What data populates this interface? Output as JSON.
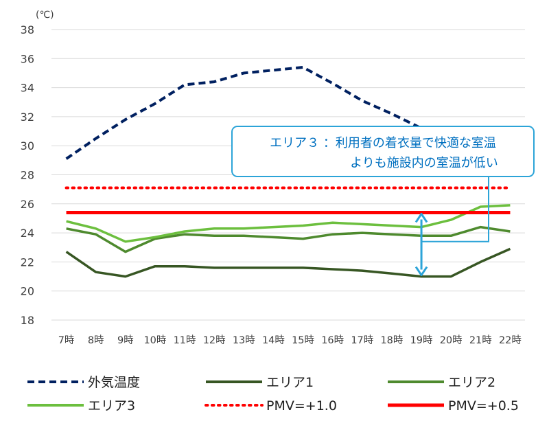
{
  "chart_data": {
    "type": "line",
    "title": "",
    "unit_label": "(℃)",
    "xlabel": "",
    "ylabel": "",
    "categories": [
      "7時",
      "8時",
      "9時",
      "10時",
      "11時",
      "12時",
      "13時",
      "14時",
      "15時",
      "16時",
      "17時",
      "18時",
      "19時",
      "20時",
      "21時",
      "22時"
    ],
    "ylim": [
      18,
      38
    ],
    "yticks": [
      18,
      20,
      22,
      24,
      26,
      28,
      30,
      32,
      34,
      36,
      38
    ],
    "grid": true,
    "legend_position": "bottom",
    "series": [
      {
        "name": "外気温度",
        "color": "#002060",
        "style": "dashed",
        "values": [
          29.1,
          30.5,
          31.8,
          32.9,
          34.2,
          34.4,
          35.0,
          35.2,
          35.4,
          34.3,
          33.1,
          32.2,
          31.2,
          30.4,
          null,
          null
        ]
      },
      {
        "name": "エリア1",
        "color": "#375623",
        "style": "solid",
        "values": [
          22.7,
          21.3,
          21.0,
          21.7,
          21.7,
          21.6,
          21.6,
          21.6,
          21.6,
          21.5,
          21.4,
          21.2,
          21.0,
          21.0,
          22.0,
          22.9
        ]
      },
      {
        "name": "エリア2",
        "color": "#4E8A2E",
        "style": "solid",
        "values": [
          24.3,
          23.9,
          22.7,
          23.6,
          23.9,
          23.8,
          23.8,
          23.7,
          23.6,
          23.9,
          24.0,
          23.9,
          23.8,
          23.8,
          24.4,
          24.1
        ]
      },
      {
        "name": "エリア3",
        "color": "#6CBF3E",
        "style": "solid",
        "values": [
          24.8,
          24.3,
          23.4,
          23.7,
          24.1,
          24.3,
          24.3,
          24.4,
          24.5,
          24.7,
          24.6,
          24.5,
          24.4,
          24.9,
          25.8,
          25.9
        ]
      },
      {
        "name": "PMV=+1.0",
        "color": "#FF0000",
        "style": "dotted",
        "values": [
          27.1,
          27.1,
          27.1,
          27.1,
          27.1,
          27.1,
          27.1,
          27.1,
          27.1,
          27.1,
          27.1,
          27.1,
          27.1,
          27.1,
          27.1,
          27.1
        ]
      },
      {
        "name": "PMV=+0.5",
        "color": "#FF0000",
        "style": "solid",
        "values": [
          25.4,
          25.4,
          25.4,
          25.4,
          25.4,
          25.4,
          25.4,
          25.4,
          25.4,
          25.4,
          25.4,
          25.4,
          25.4,
          25.4,
          25.4,
          25.4
        ]
      }
    ],
    "annotation": {
      "line1": "エリア３ ：利用者の着衣量で快適な室温",
      "line2": "よりも施設内の室温が低い",
      "color": "#0070C0",
      "arrow_category": "19時",
      "arrow_range": [
        21.0,
        25.4
      ]
    }
  }
}
